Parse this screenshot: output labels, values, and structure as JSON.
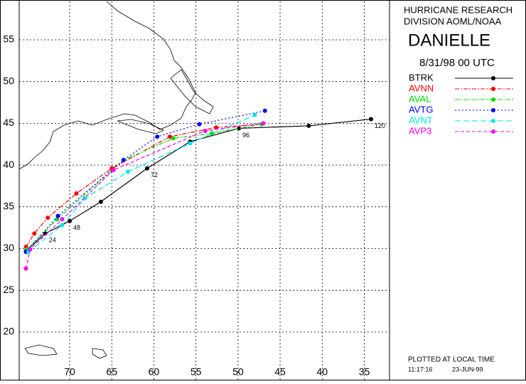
{
  "chart_data": {
    "type": "line",
    "header": [
      "HURRICANE RESEARCH",
      "DIVISION AOML/NOAA"
    ],
    "title": "DANIELLE",
    "subtitle": "8/31/98 00   UTC",
    "footer": [
      "PLOTTED AT LOCAL TIME",
      "11:17:16",
      "23-JUN-99"
    ],
    "xlim": [
      76,
      32
    ],
    "ylim": [
      14.2,
      59.6
    ],
    "xticks": [
      70,
      65,
      60,
      55,
      50,
      45,
      40,
      35
    ],
    "yticks": [
      20,
      25,
      30,
      35,
      40,
      45,
      50,
      55
    ],
    "grid": true,
    "series": [
      {
        "name": "BTRK",
        "color": "#000000",
        "dash": "none",
        "x": [
          75.2,
          72.9,
          70.0,
          66.3,
          60.8,
          55.7,
          49.9,
          41.6,
          34.2
        ],
        "values": [
          29.7,
          31.8,
          33.3,
          35.6,
          39.6,
          42.8,
          44.4,
          44.7,
          45.5
        ],
        "hour_labels": [
          null,
          "24",
          "48",
          null,
          "72",
          null,
          "96",
          null,
          "120"
        ]
      },
      {
        "name": "AVNN",
        "color": "#ff0000",
        "dash": "6 2 2 2",
        "x": [
          75.2,
          74.2,
          72.6,
          69.2,
          65.0,
          58.1,
          52.6,
          47.2
        ],
        "values": [
          30.2,
          31.8,
          33.7,
          36.6,
          39.6,
          43.4,
          44.5,
          44.9
        ]
      },
      {
        "name": "AVAL",
        "color": "#00dd00",
        "dash": "6 2 2 2",
        "x": [
          75.1,
          71.5,
          63.6,
          57.7,
          53.1,
          47.2
        ],
        "values": [
          29.9,
          33.5,
          40.6,
          43.2,
          43.8,
          44.9
        ]
      },
      {
        "name": "AVTG",
        "color": "#0000ff",
        "dash": "2 3",
        "x": [
          75.2,
          71.4,
          63.6,
          59.6,
          54.6,
          46.8
        ],
        "values": [
          29.6,
          33.9,
          40.6,
          43.4,
          44.9,
          46.5
        ]
      },
      {
        "name": "AVNT",
        "color": "#00e5ee",
        "dash": "8 4",
        "x": [
          74.9,
          70.9,
          68.2,
          63.1,
          55.7,
          48.0
        ],
        "values": [
          29.6,
          32.8,
          36.0,
          39.2,
          42.6,
          46.0
        ]
      },
      {
        "name": "AVP3",
        "color": "#ff00ff",
        "dash": "5 3",
        "x": [
          75.2,
          74.7,
          70.9,
          64.8,
          53.9,
          47.0
        ],
        "values": [
          27.6,
          29.9,
          33.5,
          39.4,
          44.1,
          45.0
        ]
      }
    ]
  }
}
